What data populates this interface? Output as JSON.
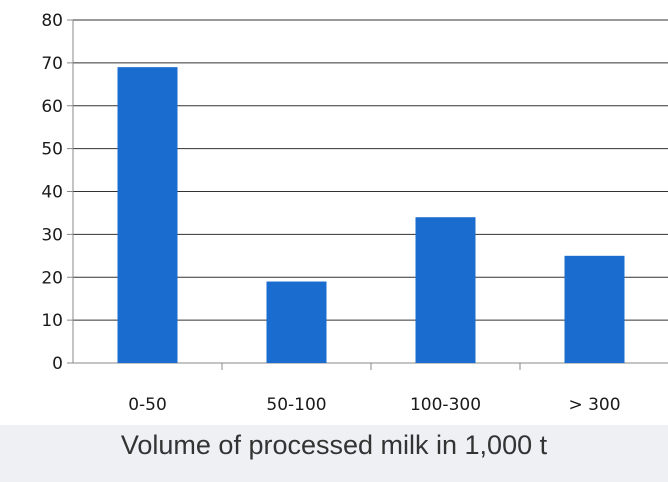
{
  "chart_data": {
    "type": "bar",
    "categories": [
      "0-50",
      "50-100",
      "100-300",
      "> 300"
    ],
    "values": [
      69,
      19,
      34,
      25
    ],
    "title": "",
    "xlabel": "Volume of processed milk in 1,000 t",
    "ylabel": "",
    "ylim": [
      0,
      80
    ],
    "yticks": [
      0,
      10,
      20,
      30,
      40,
      50,
      60,
      70,
      80
    ],
    "grid": true,
    "legend": "none",
    "bar_color": "#1a6ccf",
    "grid_color": "#333333",
    "axis_color": "#888888"
  }
}
